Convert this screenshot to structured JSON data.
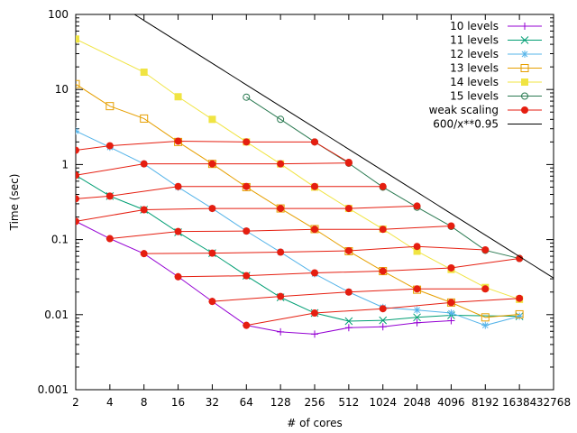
{
  "chart_data": {
    "type": "line",
    "title": "",
    "xlabel": "# of cores",
    "ylabel": "Time (sec)",
    "x_scale": "log2",
    "y_scale": "log10",
    "xlim": [
      2,
      32768
    ],
    "ylim": [
      0.001,
      100
    ],
    "x_ticks": [
      2,
      4,
      8,
      16,
      32,
      64,
      128,
      256,
      512,
      1024,
      2048,
      4096,
      8192,
      16384,
      32768
    ],
    "y_ticks": [
      0.001,
      0.01,
      0.1,
      1,
      10,
      100
    ],
    "y_tick_labels": [
      "0.001",
      "0.01",
      "0.1",
      "1",
      "10",
      "100"
    ],
    "grid": false,
    "legend_position": "top-right",
    "series": [
      {
        "name": "10 levels",
        "color": "#9400d3",
        "marker": "plus",
        "points": [
          [
            2,
            0.175
          ],
          [
            4,
            0.103
          ],
          [
            8,
            0.065
          ],
          [
            16,
            0.032
          ],
          [
            32,
            0.015
          ],
          [
            64,
            0.0072
          ],
          [
            128,
            0.0059
          ],
          [
            256,
            0.0055
          ],
          [
            512,
            0.0067
          ],
          [
            1024,
            0.0069
          ],
          [
            2048,
            0.0078
          ],
          [
            4096,
            0.0083
          ]
        ]
      },
      {
        "name": "11 levels",
        "color": "#009e73",
        "marker": "cross",
        "points": [
          [
            2,
            0.72
          ],
          [
            4,
            0.38
          ],
          [
            8,
            0.25
          ],
          [
            16,
            0.125
          ],
          [
            32,
            0.066
          ],
          [
            64,
            0.033
          ],
          [
            128,
            0.017
          ],
          [
            256,
            0.0105
          ],
          [
            512,
            0.0082
          ],
          [
            1024,
            0.0084
          ],
          [
            2048,
            0.0092
          ],
          [
            4096,
            0.0098
          ],
          [
            16384,
            0.0095
          ]
        ]
      },
      {
        "name": "12 levels",
        "color": "#56b4e9",
        "marker": "star",
        "points": [
          [
            2,
            2.8
          ],
          [
            4,
            1.7
          ],
          [
            8,
            1.02
          ],
          [
            16,
            0.5
          ],
          [
            32,
            0.26
          ],
          [
            64,
            0.13
          ],
          [
            128,
            0.068
          ],
          [
            256,
            0.035
          ],
          [
            512,
            0.02
          ],
          [
            1024,
            0.0125
          ],
          [
            2048,
            0.0115
          ],
          [
            4096,
            0.0105
          ],
          [
            8192,
            0.0072
          ],
          [
            16384,
            0.0095
          ]
        ]
      },
      {
        "name": "13 levels",
        "color": "#e69f00",
        "marker": "open-square",
        "points": [
          [
            2,
            11.8
          ],
          [
            4,
            6.0
          ],
          [
            8,
            4.1
          ],
          [
            16,
            2.0
          ],
          [
            32,
            1.02
          ],
          [
            64,
            0.5
          ],
          [
            128,
            0.26
          ],
          [
            256,
            0.138
          ],
          [
            512,
            0.07
          ],
          [
            1024,
            0.038
          ],
          [
            2048,
            0.0215
          ],
          [
            4096,
            0.0145
          ],
          [
            8192,
            0.0092
          ],
          [
            16384,
            0.0101
          ]
        ]
      },
      {
        "name": "14 levels",
        "color": "#f0e442",
        "marker": "filled-square",
        "points": [
          [
            2,
            47
          ],
          [
            8,
            17
          ],
          [
            16,
            8
          ],
          [
            32,
            4
          ],
          [
            64,
            2.0
          ],
          [
            128,
            1.02
          ],
          [
            256,
            0.5
          ],
          [
            512,
            0.26
          ],
          [
            1024,
            0.138
          ],
          [
            2048,
            0.07
          ],
          [
            4096,
            0.04
          ],
          [
            8192,
            0.023
          ],
          [
            16384,
            0.016
          ]
        ]
      },
      {
        "name": "15 levels",
        "color": "#2b7a52",
        "marker": "open-circle",
        "points": [
          [
            64,
            7.9
          ],
          [
            128,
            4.0
          ],
          [
            256,
            2.0
          ],
          [
            512,
            1.04
          ],
          [
            1024,
            0.5
          ],
          [
            2048,
            0.27
          ],
          [
            4096,
            0.15
          ],
          [
            8192,
            0.072
          ],
          [
            16384,
            0.056
          ]
        ]
      },
      {
        "name": "weak scaling",
        "color": "#e51e10",
        "marker": "filled-circle",
        "segments": [
          [
            [
              2,
              1.55
            ],
            [
              4,
              1.78
            ],
            [
              16,
              2.05
            ],
            [
              64,
              2.0
            ],
            [
              256,
              2.0
            ],
            [
              512,
              1.07
            ]
          ],
          [
            [
              2,
              0.72
            ],
            [
              8,
              1.02
            ],
            [
              32,
              1.02
            ],
            [
              128,
              1.02
            ],
            [
              512,
              1.05
            ]
          ],
          [
            [
              2,
              0.35
            ],
            [
              4,
              0.38
            ],
            [
              16,
              0.51
            ],
            [
              64,
              0.51
            ],
            [
              256,
              0.51
            ],
            [
              1024,
              0.51
            ]
          ],
          [
            [
              2,
              0.175
            ],
            [
              8,
              0.25
            ],
            [
              32,
              0.26
            ],
            [
              128,
              0.26
            ],
            [
              512,
              0.26
            ],
            [
              2048,
              0.28
            ]
          ],
          [
            [
              4,
              0.103
            ],
            [
              16,
              0.128
            ],
            [
              64,
              0.13
            ],
            [
              256,
              0.137
            ],
            [
              1024,
              0.137
            ],
            [
              4096,
              0.152
            ]
          ],
          [
            [
              8,
              0.065
            ],
            [
              32,
              0.066
            ],
            [
              128,
              0.068
            ],
            [
              512,
              0.071
            ],
            [
              2048,
              0.081
            ],
            [
              8192,
              0.073
            ]
          ],
          [
            [
              16,
              0.032
            ],
            [
              64,
              0.033
            ],
            [
              256,
              0.036
            ],
            [
              1024,
              0.038
            ],
            [
              4096,
              0.042
            ],
            [
              16384,
              0.056
            ]
          ],
          [
            [
              32,
              0.015
            ],
            [
              128,
              0.0175
            ],
            [
              512,
              0.02
            ],
            [
              2048,
              0.022
            ],
            [
              8192,
              0.022
            ]
          ],
          [
            [
              64,
              0.0072
            ],
            [
              256,
              0.0105
            ],
            [
              1024,
              0.012
            ],
            [
              4096,
              0.0145
            ],
            [
              16384,
              0.0165
            ]
          ]
        ]
      },
      {
        "name": "600/x**0.95",
        "color": "#000000",
        "marker": "none",
        "function": {
          "coefficient": 600,
          "exponent": -0.95
        }
      }
    ]
  }
}
